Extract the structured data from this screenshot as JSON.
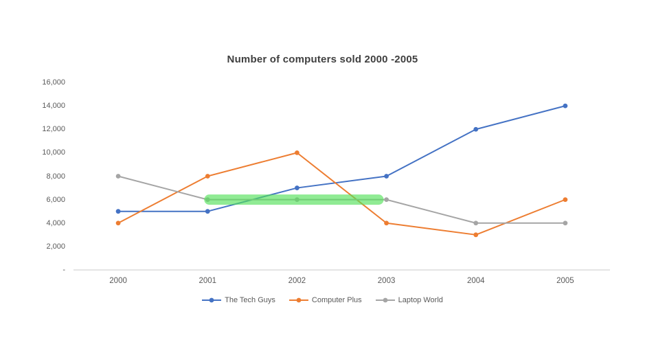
{
  "chart_data": {
    "type": "line",
    "title": "Number of computers sold 2000 -2005",
    "categories": [
      "2000",
      "2001",
      "2002",
      "2003",
      "2004",
      "2005"
    ],
    "series": [
      {
        "name": "The Tech Guys",
        "color": "#4472C4",
        "values": [
          5000,
          5000,
          7000,
          8000,
          12000,
          14000
        ]
      },
      {
        "name": "Computer Plus",
        "color": "#ED7D31",
        "values": [
          4000,
          8000,
          10000,
          4000,
          3000,
          6000
        ]
      },
      {
        "name": "Laptop World",
        "color": "#A5A5A5",
        "values": [
          8000,
          6000,
          6000,
          6000,
          4000,
          4000
        ]
      }
    ],
    "xlabel": "",
    "ylabel": "",
    "ylim": [
      0,
      16000
    ],
    "y_tick_values": [
      0,
      2000,
      4000,
      6000,
      8000,
      10000,
      12000,
      14000,
      16000
    ],
    "y_tick_labels": [
      "-",
      "2,000",
      "4,000",
      "6,000",
      "8,000",
      "10,000",
      "12,000",
      "14,000",
      "16,000"
    ],
    "grid": false,
    "legend_position": "bottom",
    "axis_line_color": "#C9C9C9",
    "annotations": [
      {
        "type": "highlight-band",
        "description": "green highlighter stroke over Laptop World segment",
        "x_start": "2001",
        "x_end": "2003",
        "y_value": 6000,
        "color": "#55E05A",
        "opacity": 0.65,
        "thickness": 15
      }
    ]
  }
}
